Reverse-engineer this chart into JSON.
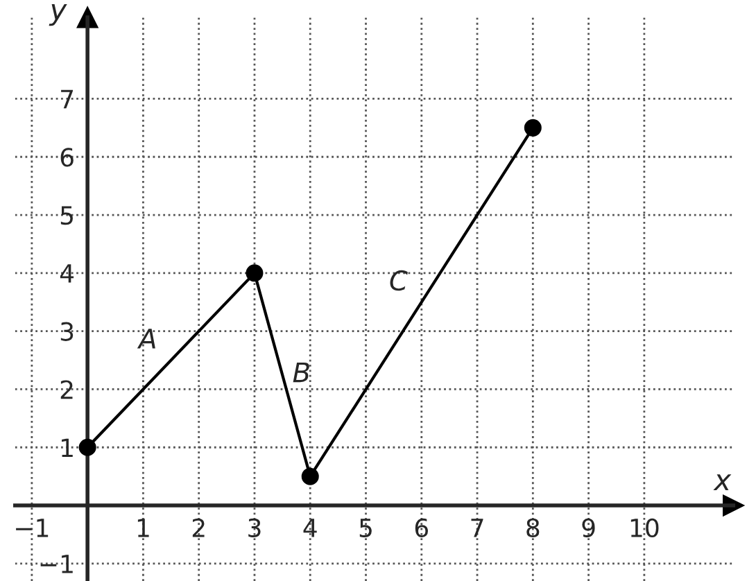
{
  "chart_data": {
    "type": "line",
    "xlabel": "x",
    "ylabel": "y",
    "x": [
      0,
      3,
      4,
      8
    ],
    "series": [
      {
        "color": "#000000",
        "values": [
          1,
          4,
          0.5,
          6.5
        ]
      }
    ],
    "marker": "circle",
    "line_style": "solid",
    "grid": true,
    "xlim": [
      -1.3,
      11.6
    ],
    "ylim": [
      -1.3,
      8.4
    ],
    "xticks": [
      -1,
      1,
      2,
      3,
      4,
      5,
      6,
      7,
      8,
      9,
      10
    ],
    "yticks": [
      -1,
      1,
      2,
      3,
      4,
      5,
      6,
      7
    ],
    "annotations": [
      "A",
      "B",
      "C"
    ]
  }
}
